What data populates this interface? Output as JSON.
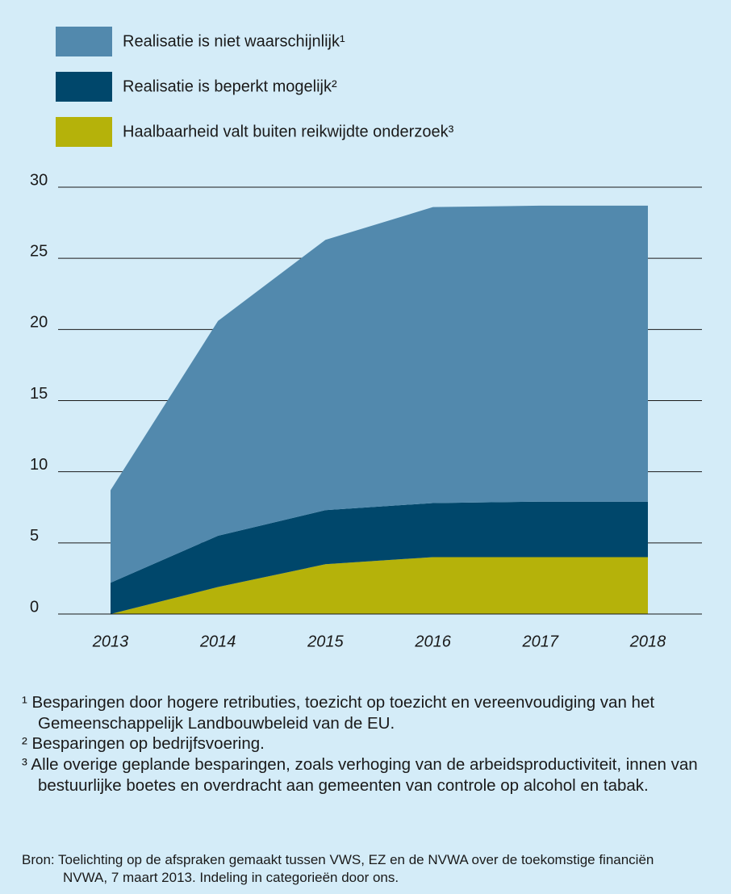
{
  "chart_data": {
    "type": "stacked_area",
    "categories": [
      "2013",
      "2014",
      "2015",
      "2016",
      "2017",
      "2018"
    ],
    "series": [
      {
        "name": "Haalbaarheid valt buiten reikwijdte onderzoek³",
        "color": "#b5b20a",
        "values": [
          0,
          1.9,
          3.5,
          4.0,
          4.0,
          4.0
        ]
      },
      {
        "name": "Realisatie is beperkt mogelijk²",
        "color": "#00476b",
        "values": [
          2.2,
          3.6,
          3.8,
          3.8,
          3.9,
          3.9
        ]
      },
      {
        "name": "Realisatie is niet waarschijnlijk¹",
        "color": "#5289ad",
        "values": [
          6.5,
          15.1,
          19.0,
          20.8,
          20.8,
          20.8
        ]
      }
    ],
    "ylim": [
      0,
      30
    ],
    "yticks": [
      0,
      5,
      10,
      15,
      20,
      25,
      30
    ],
    "grid": true,
    "footnotes": [
      "¹ Besparingen door hogere retributies, toezicht op toezicht en vereenvoudiging van het Gemeenschappelijk Landbouwbeleid van de EU.",
      "² Besparingen op bedrijfsvoering.",
      "³ Alle overige geplande besparingen, zoals verhoging van de arbeidsproductiviteit, innen van bestuurlijke boetes en overdracht aan gemeenten van controle op alcohol en tabak."
    ],
    "source": "Bron: Toelichting op de afspraken gemaakt tussen VWS, EZ en de NVWA over de toekomstige financiën NVWA, 7 maart 2013. Indeling in categorieën door ons."
  }
}
